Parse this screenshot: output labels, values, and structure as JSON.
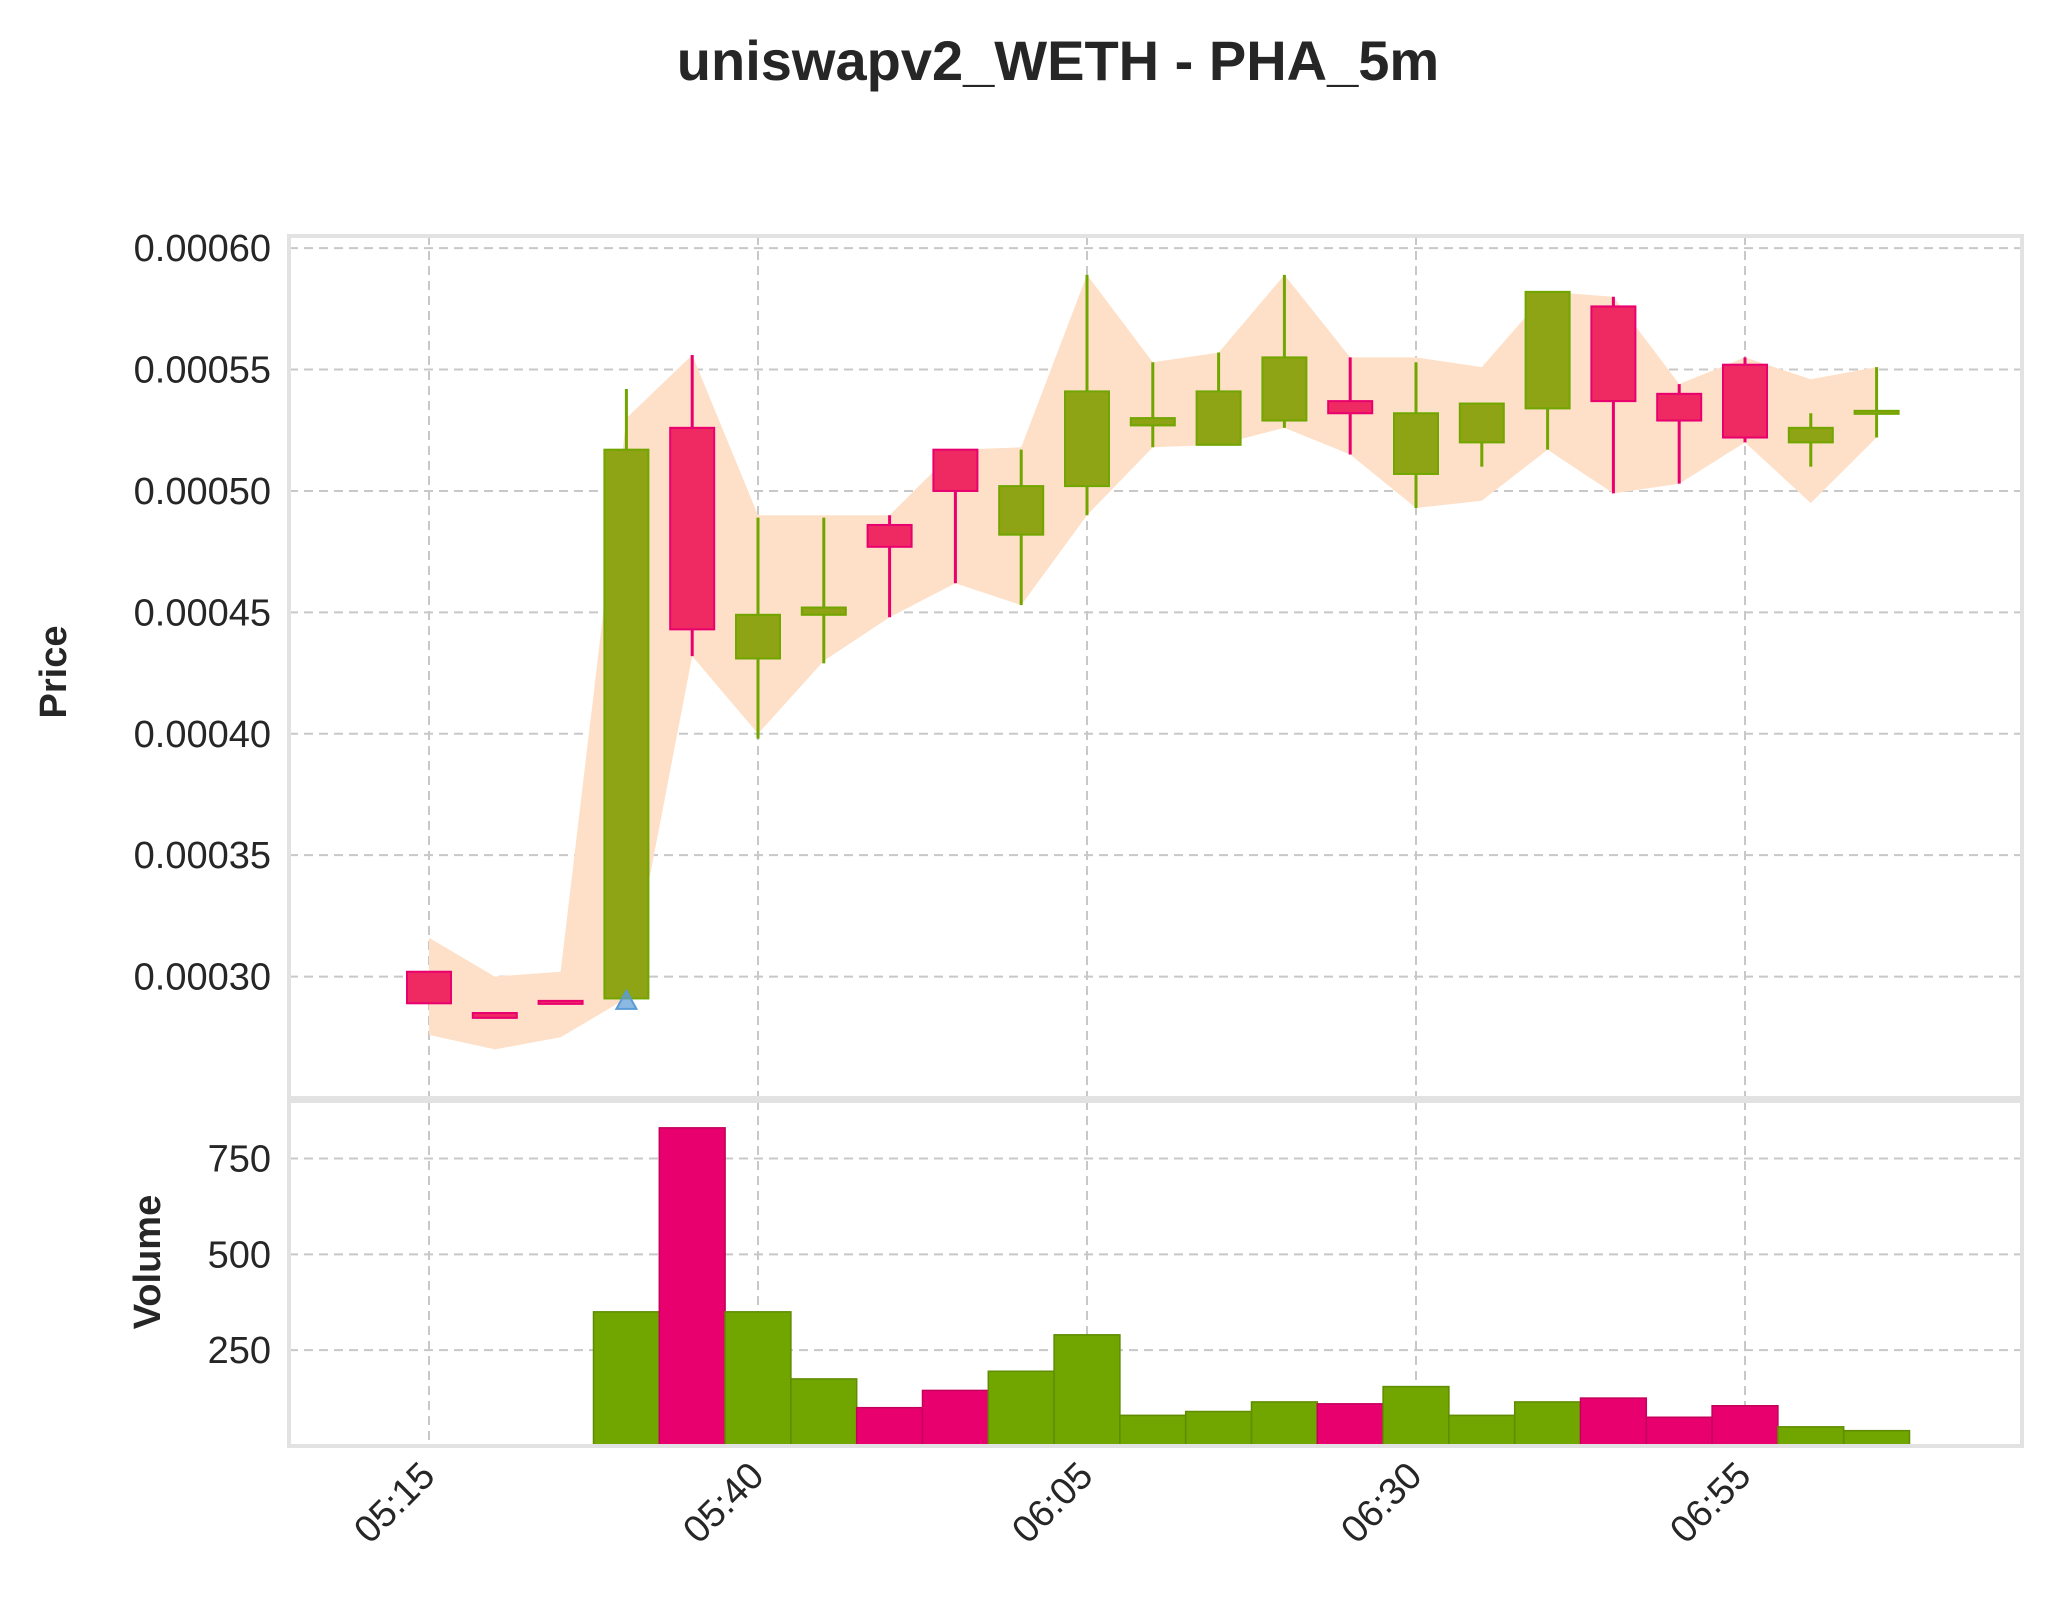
{
  "title": "uniswapv2_WETH - PHA_5m",
  "chart_data": {
    "type": "candlestick",
    "title": "uniswapv2_WETH - PHA_5m",
    "price_ylabel": "Price",
    "volume_ylabel": "Volume",
    "price_ylim": [
      0.00025,
      0.000605
    ],
    "volume_ylim": [
      0,
      900
    ],
    "price_ticks": [
      "0.00030",
      "0.00035",
      "0.00040",
      "0.00045",
      "0.00050",
      "0.00055",
      "0.00060"
    ],
    "volume_ticks": [
      "250",
      "500",
      "750"
    ],
    "x_ticks": [
      "05:15",
      "05:40",
      "06:05",
      "06:30",
      "06:55"
    ],
    "grid": true,
    "colors": {
      "up": "#71a500",
      "up_body": "#8fa414",
      "down": "#e8006e",
      "down_body": "#ef2a62",
      "band": "#fee0c8",
      "marker": "#5b9bd5"
    },
    "candles": [
      {
        "time": "05:15",
        "open": 0.000302,
        "high": 0.000302,
        "low": 0.000289,
        "close": 0.000289,
        "volume": 0
      },
      {
        "time": "05:20",
        "open": 0.000285,
        "high": 0.000285,
        "low": 0.000283,
        "close": 0.000283,
        "volume": 0
      },
      {
        "time": "05:25",
        "open": 0.00029,
        "high": 0.00029,
        "low": 0.000289,
        "close": 0.000289,
        "volume": 0
      },
      {
        "time": "05:30",
        "open": 0.000291,
        "high": 0.000542,
        "low": 0.000291,
        "close": 0.000517,
        "volume": 350
      },
      {
        "time": "05:35",
        "open": 0.000526,
        "high": 0.000556,
        "low": 0.000432,
        "close": 0.000443,
        "volume": 830
      },
      {
        "time": "05:40",
        "open": 0.000431,
        "high": 0.000489,
        "low": 0.000398,
        "close": 0.000449,
        "volume": 350
      },
      {
        "time": "05:45",
        "open": 0.000449,
        "high": 0.000489,
        "low": 0.000429,
        "close": 0.000452,
        "volume": 175
      },
      {
        "time": "05:50",
        "open": 0.000486,
        "high": 0.00049,
        "low": 0.000448,
        "close": 0.000477,
        "volume": 100
      },
      {
        "time": "05:55",
        "open": 0.000517,
        "high": 0.000517,
        "low": 0.000462,
        "close": 0.0005,
        "volume": 145
      },
      {
        "time": "06:00",
        "open": 0.000482,
        "high": 0.000517,
        "low": 0.000453,
        "close": 0.000502,
        "volume": 195
      },
      {
        "time": "06:05",
        "open": 0.000502,
        "high": 0.000589,
        "low": 0.00049,
        "close": 0.000541,
        "volume": 290
      },
      {
        "time": "06:10",
        "open": 0.000527,
        "high": 0.000553,
        "low": 0.000518,
        "close": 0.00053,
        "volume": 80
      },
      {
        "time": "06:15",
        "open": 0.000519,
        "high": 0.000557,
        "low": 0.000519,
        "close": 0.000541,
        "volume": 90
      },
      {
        "time": "06:20",
        "open": 0.000529,
        "high": 0.000589,
        "low": 0.000526,
        "close": 0.000555,
        "volume": 115
      },
      {
        "time": "06:25",
        "open": 0.000537,
        "high": 0.000555,
        "low": 0.000515,
        "close": 0.000532,
        "volume": 110
      },
      {
        "time": "06:30",
        "open": 0.000507,
        "high": 0.000553,
        "low": 0.000493,
        "close": 0.000532,
        "volume": 155
      },
      {
        "time": "06:35",
        "open": 0.00052,
        "high": 0.000536,
        "low": 0.00051,
        "close": 0.000536,
        "volume": 80
      },
      {
        "time": "06:40",
        "open": 0.000534,
        "high": 0.000582,
        "low": 0.000517,
        "close": 0.000582,
        "volume": 115
      },
      {
        "time": "06:45",
        "open": 0.000576,
        "high": 0.00058,
        "low": 0.000499,
        "close": 0.000537,
        "volume": 125
      },
      {
        "time": "06:50",
        "open": 0.00054,
        "high": 0.000544,
        "low": 0.000503,
        "close": 0.000529,
        "volume": 75
      },
      {
        "time": "06:55",
        "open": 0.000552,
        "high": 0.000555,
        "low": 0.00052,
        "close": 0.000522,
        "volume": 105
      },
      {
        "time": "07:00",
        "open": 0.00052,
        "high": 0.000532,
        "low": 0.00051,
        "close": 0.000526,
        "volume": 50
      },
      {
        "time": "07:05",
        "open": 0.000532,
        "high": 0.000551,
        "low": 0.000522,
        "close": 0.000533,
        "volume": 40
      }
    ],
    "band_upper": [
      0.000316,
      0.0003,
      0.000302,
      0.00053,
      0.000556,
      0.00049,
      0.00049,
      0.00049,
      0.000517,
      0.000518,
      0.000589,
      0.000553,
      0.000557,
      0.000589,
      0.000555,
      0.000555,
      0.000551,
      0.000582,
      0.00058,
      0.000544,
      0.000555,
      0.000546,
      0.000551
    ],
    "band_lower": [
      0.000276,
      0.00027,
      0.000275,
      0.000291,
      0.000432,
      0.0004,
      0.00043,
      0.000448,
      0.000462,
      0.000453,
      0.00049,
      0.000518,
      0.000519,
      0.000526,
      0.000515,
      0.000493,
      0.000496,
      0.000517,
      0.000499,
      0.000503,
      0.00052,
      0.000495,
      0.000522
    ],
    "buy_markers": [
      {
        "time": "05:30",
        "price": 0.00029
      }
    ]
  }
}
